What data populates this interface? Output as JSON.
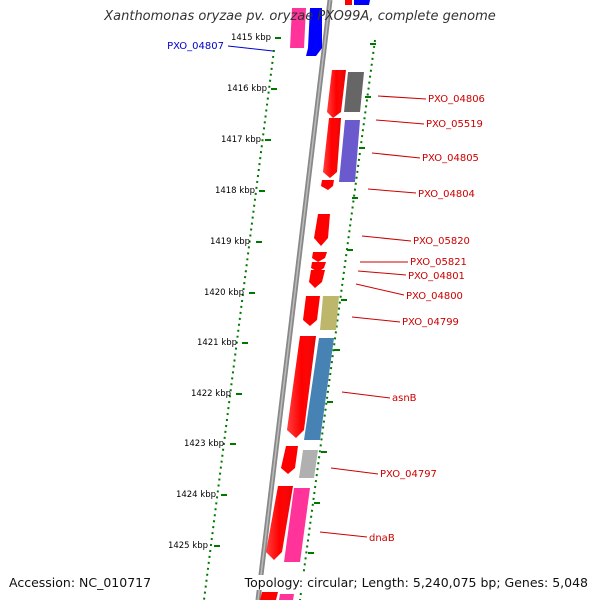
{
  "title": "Xanthomonas oryzae pv. oryzae PXO99A, complete genome",
  "footer": {
    "accession": "Accession: NC_010717",
    "topology": "Topology: circular; Length: 5,240,075 bp; Genes: 5,048"
  },
  "scale_labels": [
    "1415 kbp",
    "1416 kbp",
    "1417 kbp",
    "1418 kbp",
    "1419 kbp",
    "1420 kbp",
    "1421 kbp",
    "1422 kbp",
    "1423 kbp",
    "1424 kbp",
    "1425 kbp"
  ],
  "gene_labels": [
    {
      "text": "PXO_04807",
      "color": "#0000cc"
    },
    {
      "text": "PXO_04806",
      "color": "#cc0000"
    },
    {
      "text": "PXO_05519",
      "color": "#cc0000"
    },
    {
      "text": "PXO_04805",
      "color": "#cc0000"
    },
    {
      "text": "PXO_04804",
      "color": "#cc0000"
    },
    {
      "text": "PXO_05820",
      "color": "#cc0000"
    },
    {
      "text": "PXO_05821",
      "color": "#cc0000"
    },
    {
      "text": "PXO_04801",
      "color": "#cc0000"
    },
    {
      "text": "PXO_04800",
      "color": "#cc0000"
    },
    {
      "text": "PXO_04799",
      "color": "#cc0000"
    },
    {
      "text": "asnB",
      "color": "#cc0000"
    },
    {
      "text": "PXO_04797",
      "color": "#cc0000"
    },
    {
      "text": "dnaB",
      "color": "#cc0000"
    }
  ],
  "colors": {
    "strand_forward": "#ff0000",
    "backbone": "#808080",
    "tick": "#007700",
    "pink": "#ff3399",
    "blue": "#0000ff",
    "dark_gray": "#666666",
    "slate": "#6a5acd",
    "khaki": "#bdb76b",
    "steel": "#4682b4",
    "light_gray": "#b0b0b0"
  }
}
